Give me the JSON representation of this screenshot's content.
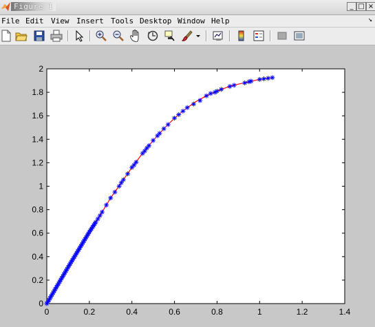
{
  "window": {
    "title": "Figure 1",
    "buttons": [
      "_",
      "□",
      "×"
    ]
  },
  "menu": {
    "items": [
      "File",
      "Edit",
      "View",
      "Insert",
      "Tools",
      "Desktop",
      "Window",
      "Help"
    ],
    "dock_arrow": "↘"
  },
  "toolbar": {
    "icons": [
      "new-figure-icon",
      "open-file-icon",
      "save-figure-icon",
      "print-figure-icon",
      "edit-plot-icon",
      "zoom-in-icon",
      "zoom-out-icon",
      "pan-icon",
      "rotate-3d-icon",
      "data-cursor-icon",
      "brush-icon",
      "brush-dropdown-icon",
      "link-plot-icon",
      "insert-colorbar-icon",
      "insert-legend-icon",
      "hide-plot-tools-icon",
      "show-plot-tools-icon"
    ]
  },
  "colors": {
    "line": "#ff0000",
    "markers": "#0000ff",
    "figure_bg": "#c8c8c8",
    "axes_bg": "#ffffff"
  },
  "chart_data": {
    "type": "line",
    "title": "",
    "xlabel": "",
    "ylabel": "",
    "xlim": [
      0,
      1.4
    ],
    "ylim": [
      0,
      2
    ],
    "xticks": [
      0,
      0.2,
      0.4,
      0.6,
      0.8,
      1,
      1.2,
      1.4
    ],
    "yticks": [
      0,
      0.2,
      0.4,
      0.6,
      0.8,
      1,
      1.2,
      1.4,
      1.6,
      1.8,
      2
    ],
    "xtick_labels": [
      "0",
      "0.2",
      "0.4",
      "0.6",
      "0.8",
      "1",
      "1.2",
      "1.4"
    ],
    "ytick_labels": [
      "0",
      "0.2",
      "0.4",
      "0.6",
      "0.8",
      "1",
      "1.2",
      "1.4",
      "1.6",
      "1.8",
      "2"
    ],
    "grid": false,
    "series": [
      {
        "style": "line",
        "x": [
          0,
          0.05,
          0.1,
          0.15,
          0.2,
          0.25,
          0.3,
          0.35,
          0.4,
          0.45,
          0.5,
          0.55,
          0.6,
          0.65,
          0.7,
          0.75,
          0.8,
          0.85,
          0.9,
          0.95,
          1.0,
          1.06
        ],
        "y": [
          0,
          0.155,
          0.31,
          0.46,
          0.61,
          0.75,
          0.9,
          1.03,
          1.16,
          1.28,
          1.39,
          1.49,
          1.58,
          1.655,
          1.72,
          1.77,
          1.81,
          1.845,
          1.87,
          1.89,
          1.91,
          1.925
        ]
      },
      {
        "style": "markers",
        "marker": "*",
        "x": [
          0,
          0.005,
          0.01,
          0.015,
          0.02,
          0.025,
          0.03,
          0.035,
          0.04,
          0.045,
          0.05,
          0.055,
          0.06,
          0.065,
          0.07,
          0.075,
          0.08,
          0.085,
          0.09,
          0.095,
          0.1,
          0.105,
          0.11,
          0.115,
          0.12,
          0.125,
          0.13,
          0.135,
          0.14,
          0.145,
          0.15,
          0.155,
          0.16,
          0.165,
          0.17,
          0.175,
          0.18,
          0.185,
          0.19,
          0.195,
          0.2,
          0.205,
          0.21,
          0.215,
          0.22,
          0.225,
          0.23,
          0.24,
          0.25,
          0.26,
          0.28,
          0.3,
          0.32,
          0.34,
          0.35,
          0.36,
          0.38,
          0.4,
          0.41,
          0.42,
          0.45,
          0.46,
          0.47,
          0.48,
          0.5,
          0.52,
          0.53,
          0.55,
          0.57,
          0.6,
          0.62,
          0.64,
          0.66,
          0.69,
          0.72,
          0.75,
          0.77,
          0.79,
          0.8,
          0.82,
          0.86,
          0.88,
          0.93,
          0.95,
          0.96,
          1.0,
          1.02,
          1.04,
          1.06
        ],
        "y": [
          0,
          0.015,
          0.03,
          0.046,
          0.062,
          0.077,
          0.093,
          0.108,
          0.124,
          0.139,
          0.155,
          0.17,
          0.186,
          0.201,
          0.217,
          0.232,
          0.248,
          0.263,
          0.279,
          0.294,
          0.31,
          0.325,
          0.34,
          0.355,
          0.37,
          0.385,
          0.4,
          0.415,
          0.43,
          0.445,
          0.46,
          0.475,
          0.49,
          0.505,
          0.52,
          0.535,
          0.55,
          0.565,
          0.58,
          0.595,
          0.61,
          0.624,
          0.638,
          0.652,
          0.666,
          0.68,
          0.694,
          0.722,
          0.75,
          0.78,
          0.84,
          0.9,
          0.95,
          1.0,
          1.03,
          1.055,
          1.105,
          1.16,
          1.18,
          1.205,
          1.28,
          1.3,
          1.325,
          1.345,
          1.39,
          1.43,
          1.45,
          1.49,
          1.525,
          1.58,
          1.61,
          1.64,
          1.67,
          1.7,
          1.73,
          1.77,
          1.79,
          1.8,
          1.81,
          1.825,
          1.85,
          1.86,
          1.88,
          1.89,
          1.895,
          1.91,
          1.915,
          1.92,
          1.925
        ]
      }
    ]
  }
}
